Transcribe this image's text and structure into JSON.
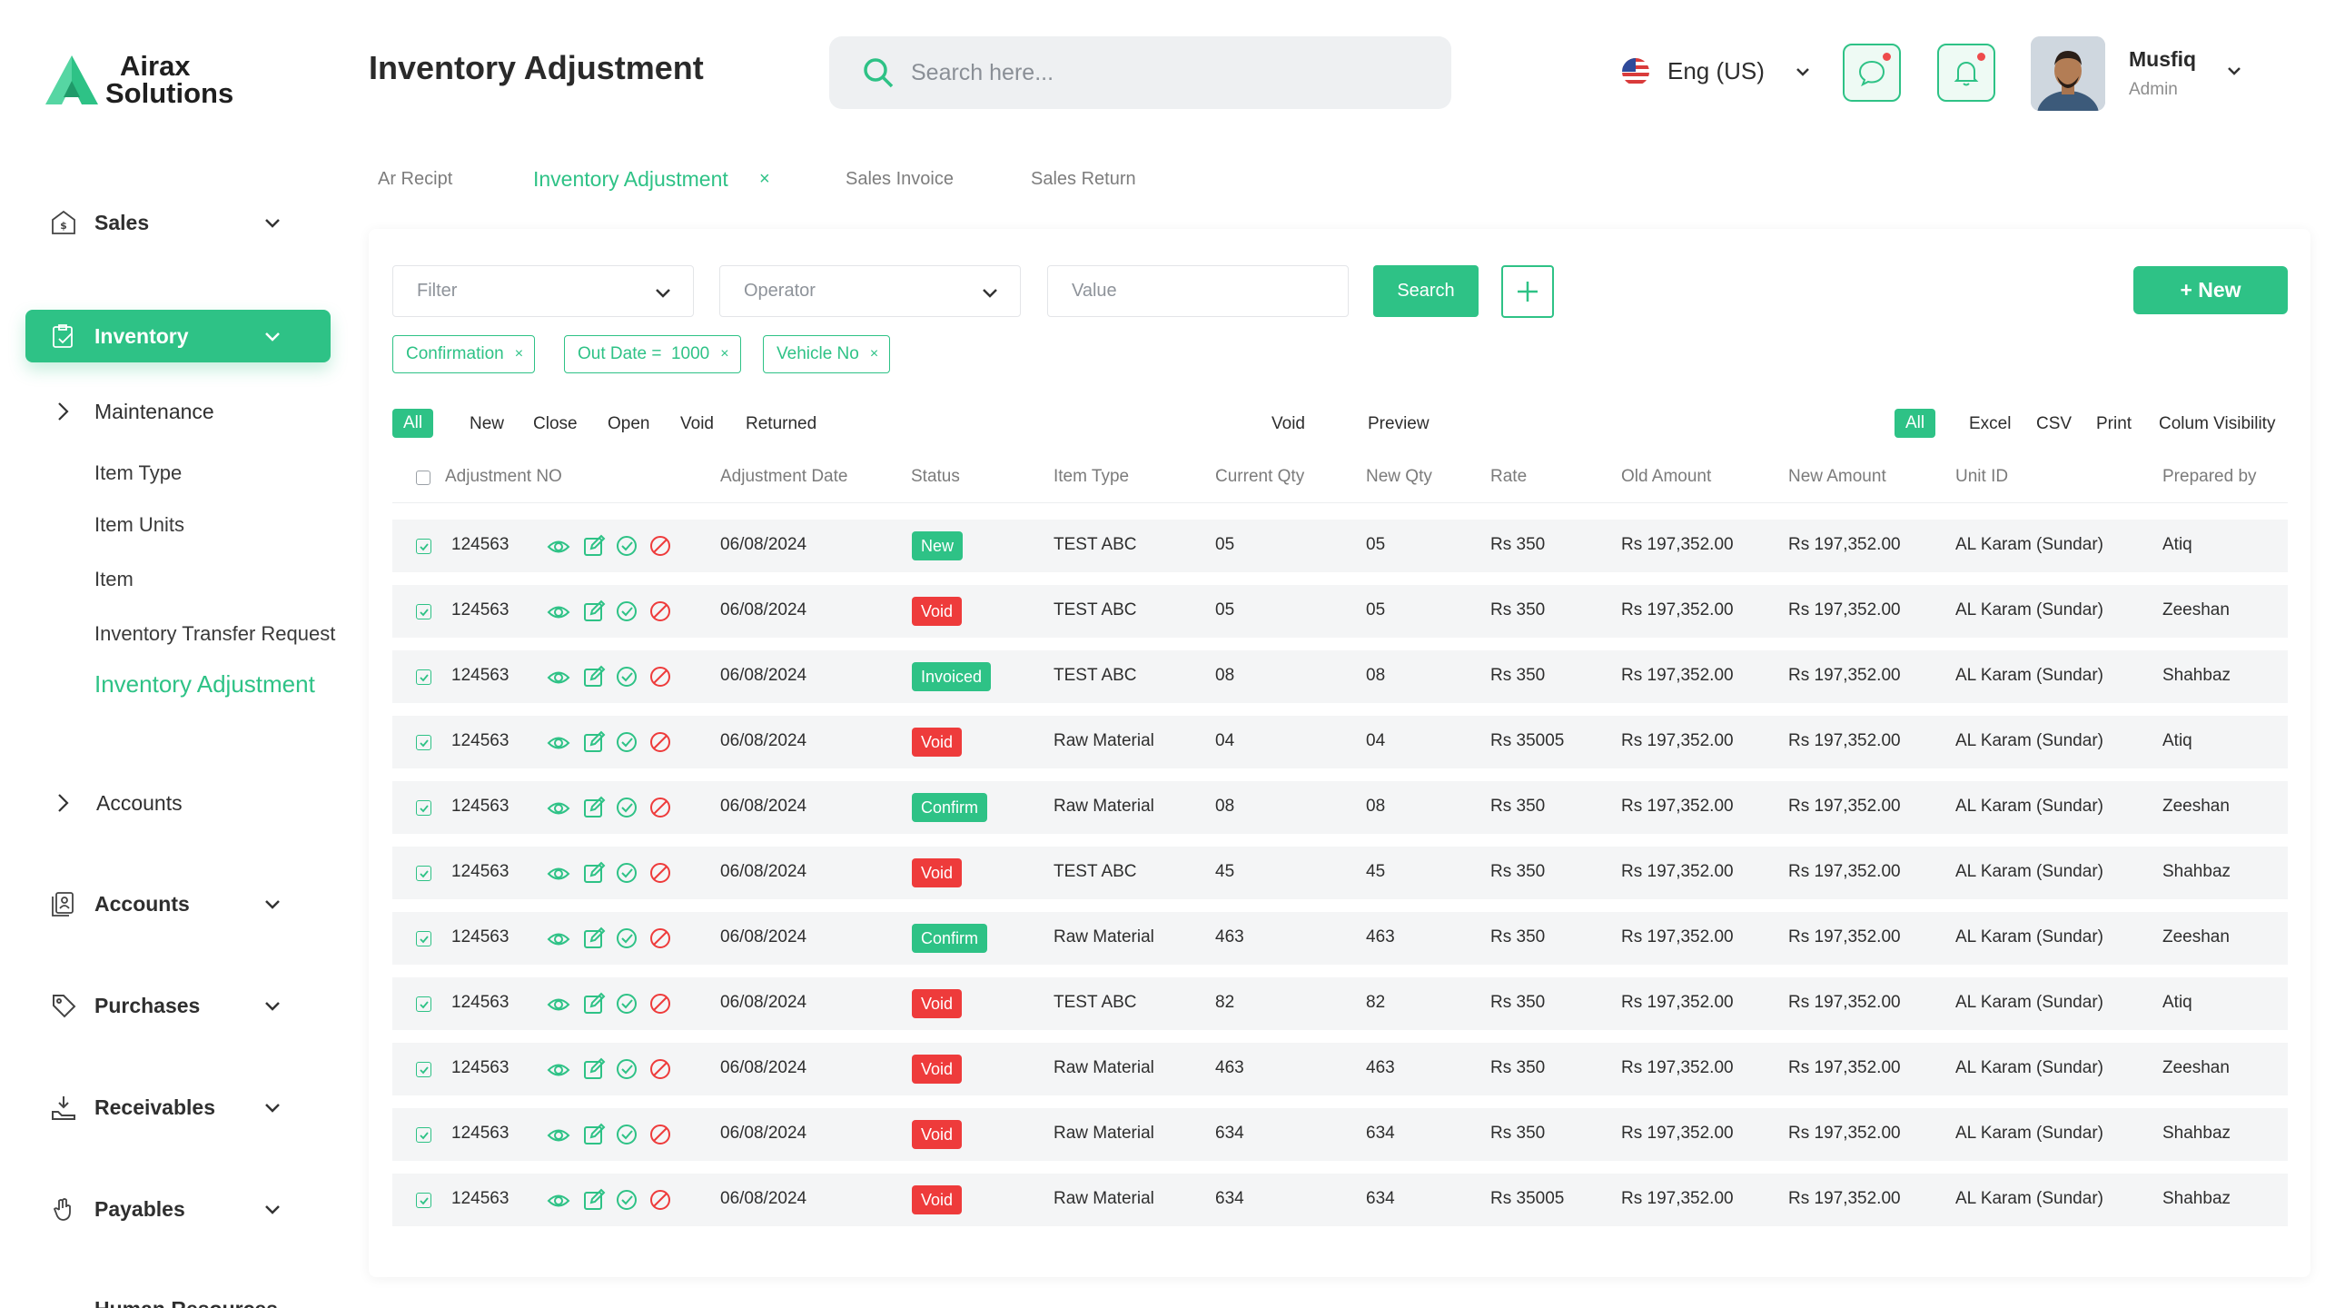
{
  "brand": {
    "line1": "Airax",
    "line2": "Solutions"
  },
  "sidebar": {
    "sales": "Sales",
    "inventory": "Inventory",
    "maintenance": "Maintenance",
    "sub_items": [
      "Item Type",
      "Item Units",
      "Item",
      "Inventory Transfer Request",
      "Inventory Adjustment"
    ],
    "accounts_plain": "Accounts",
    "accounts": "Accounts",
    "purchases": "Purchases",
    "receivables": "Receivables",
    "payables": "Payables",
    "human_resources": "Human Resources"
  },
  "header": {
    "title": "Inventory Adjustment",
    "search_placeholder": "Search here...",
    "language": "Eng (US)",
    "user_name": "Musfiq",
    "user_role": "Admin"
  },
  "tabs": [
    "Ar Recipt",
    "Inventory Adjustment",
    "Sales Invoice",
    "Sales Return"
  ],
  "filters": {
    "filter_placeholder": "Filter",
    "operator_placeholder": "Operator",
    "value_placeholder": "Value",
    "search_label": "Search",
    "new_label": "+ New",
    "chips": [
      "Confirmation",
      "Out Date =  1000",
      "Vehicle No"
    ]
  },
  "status_filters": [
    "All",
    "New",
    "Close",
    "Open",
    "Void",
    "Returned"
  ],
  "mid_actions": [
    "Void",
    "Preview"
  ],
  "export_actions": [
    "All",
    "Excel",
    "CSV",
    "Print",
    "Colum Visibility"
  ],
  "table": {
    "columns": [
      "Adjustment NO",
      "Adjustment Date",
      "Status",
      "Item Type",
      "Current Qty",
      "New Qty",
      "Rate",
      "Old Amount",
      "New Amount",
      "Unit ID",
      "Prepared by"
    ],
    "status_colors": {
      "New": "#2ec286",
      "Void": "#ee3b3b",
      "Invoiced": "#2ec286",
      "Confirm": "#2ec286"
    },
    "rows": [
      {
        "no": "124563",
        "date": "06/08/2024",
        "status": "New",
        "item_type": "TEST ABC",
        "current_qty": "05",
        "new_qty": "05",
        "rate": "Rs 350",
        "old_amount": "Rs 197,352.00",
        "new_amount": "Rs 197,352.00",
        "unit": "AL Karam (Sundar)",
        "prepared_by": "Atiq"
      },
      {
        "no": "124563",
        "date": "06/08/2024",
        "status": "Void",
        "item_type": "TEST ABC",
        "current_qty": "05",
        "new_qty": "05",
        "rate": "Rs 350",
        "old_amount": "Rs 197,352.00",
        "new_amount": "Rs 197,352.00",
        "unit": "AL Karam (Sundar)",
        "prepared_by": "Zeeshan"
      },
      {
        "no": "124563",
        "date": "06/08/2024",
        "status": "Invoiced",
        "item_type": "TEST ABC",
        "current_qty": "08",
        "new_qty": "08",
        "rate": "Rs 350",
        "old_amount": "Rs 197,352.00",
        "new_amount": "Rs 197,352.00",
        "unit": "AL Karam (Sundar)",
        "prepared_by": "Shahbaz"
      },
      {
        "no": "124563",
        "date": "06/08/2024",
        "status": "Void",
        "item_type": "Raw Material",
        "current_qty": "04",
        "new_qty": "04",
        "rate": "Rs 35005",
        "old_amount": "Rs 197,352.00",
        "new_amount": "Rs 197,352.00",
        "unit": "AL Karam (Sundar)",
        "prepared_by": "Atiq"
      },
      {
        "no": "124563",
        "date": "06/08/2024",
        "status": "Confirm",
        "item_type": "Raw Material",
        "current_qty": "08",
        "new_qty": "08",
        "rate": "Rs 350",
        "old_amount": "Rs 197,352.00",
        "new_amount": "Rs 197,352.00",
        "unit": "AL Karam (Sundar)",
        "prepared_by": "Zeeshan"
      },
      {
        "no": "124563",
        "date": "06/08/2024",
        "status": "Void",
        "item_type": "TEST ABC",
        "current_qty": "45",
        "new_qty": "45",
        "rate": "Rs 350",
        "old_amount": "Rs 197,352.00",
        "new_amount": "Rs 197,352.00",
        "unit": "AL Karam (Sundar)",
        "prepared_by": "Shahbaz"
      },
      {
        "no": "124563",
        "date": "06/08/2024",
        "status": "Confirm",
        "item_type": "Raw Material",
        "current_qty": "463",
        "new_qty": "463",
        "rate": "Rs 350",
        "old_amount": "Rs 197,352.00",
        "new_amount": "Rs 197,352.00",
        "unit": "AL Karam (Sundar)",
        "prepared_by": "Zeeshan"
      },
      {
        "no": "124563",
        "date": "06/08/2024",
        "status": "Void",
        "item_type": "TEST ABC",
        "current_qty": "82",
        "new_qty": "82",
        "rate": "Rs 350",
        "old_amount": "Rs 197,352.00",
        "new_amount": "Rs 197,352.00",
        "unit": "AL Karam (Sundar)",
        "prepared_by": "Atiq"
      },
      {
        "no": "124563",
        "date": "06/08/2024",
        "status": "Void",
        "item_type": "Raw Material",
        "current_qty": "463",
        "new_qty": "463",
        "rate": "Rs 350",
        "old_amount": "Rs 197,352.00",
        "new_amount": "Rs 197,352.00",
        "unit": "AL Karam (Sundar)",
        "prepared_by": "Zeeshan"
      },
      {
        "no": "124563",
        "date": "06/08/2024",
        "status": "Void",
        "item_type": "Raw Material",
        "current_qty": "634",
        "new_qty": "634",
        "rate": "Rs 350",
        "old_amount": "Rs 197,352.00",
        "new_amount": "Rs 197,352.00",
        "unit": "AL Karam (Sundar)",
        "prepared_by": "Shahbaz"
      },
      {
        "no": "124563",
        "date": "06/08/2024",
        "status": "Void",
        "item_type": "Raw Material",
        "current_qty": "634",
        "new_qty": "634",
        "rate": "Rs 35005",
        "old_amount": "Rs 197,352.00",
        "new_amount": "Rs 197,352.00",
        "unit": "AL Karam (Sundar)",
        "prepared_by": "Shahbaz"
      }
    ]
  },
  "colors": {
    "accent": "#2ec286",
    "danger": "#ee3b3b"
  }
}
